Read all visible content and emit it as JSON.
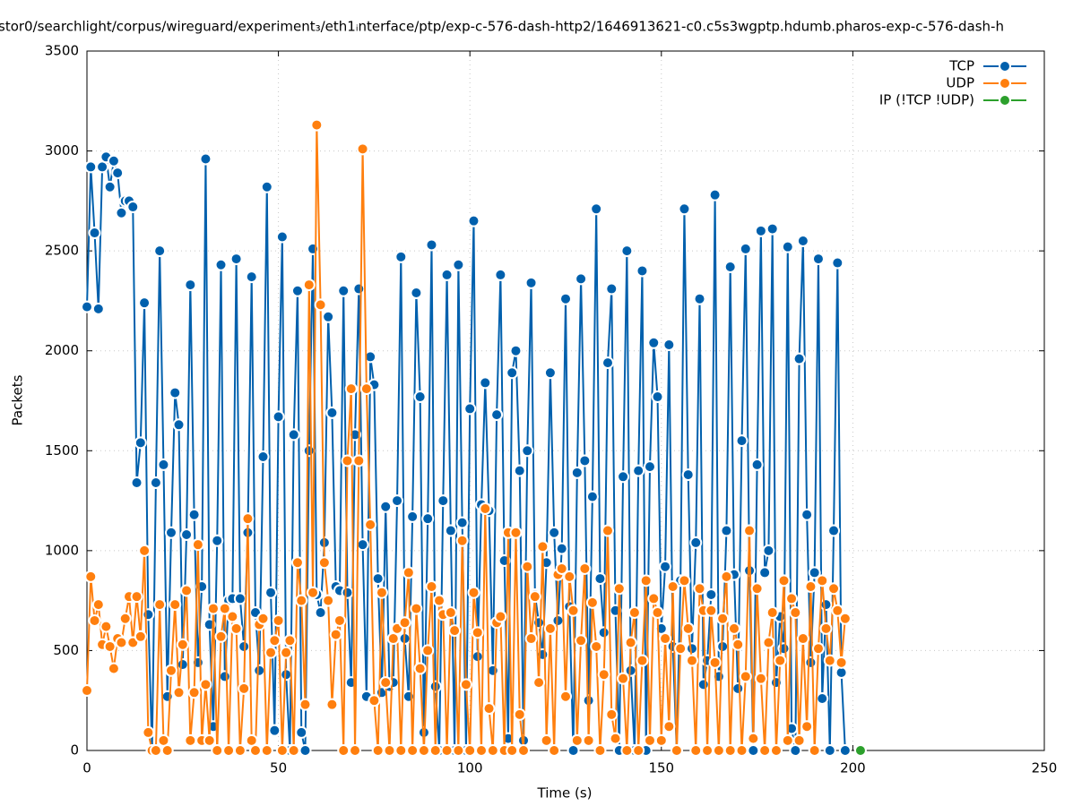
{
  "chart_data": {
    "type": "line",
    "title": "stor0/searchlight/corpus/wireguard/experiment₃/eth1ᵢnterface/ptp/exp-c-576-dash-http2/1646913621-c0.c5s3wgptp.hdumb.pharos-exp-c-576-dash-h",
    "x_label": "Time (s)",
    "y_label": "Packets",
    "xlim": [
      0,
      250
    ],
    "ylim": [
      0,
      3500
    ],
    "xticks": [
      0,
      50,
      100,
      150,
      200,
      250
    ],
    "yticks": [
      0,
      500,
      1000,
      1500,
      2000,
      2500,
      3000,
      3500
    ],
    "grid": true,
    "legend": "top-right",
    "x": [
      0,
      1,
      2,
      3,
      4,
      5,
      6,
      7,
      8,
      9,
      10,
      11,
      12,
      13,
      14,
      15,
      16,
      17,
      18,
      19,
      20,
      21,
      22,
      23,
      24,
      25,
      26,
      27,
      28,
      29,
      30,
      31,
      32,
      33,
      34,
      35,
      36,
      37,
      38,
      39,
      40,
      41,
      42,
      43,
      44,
      45,
      46,
      47,
      48,
      49,
      50,
      51,
      52,
      53,
      54,
      55,
      56,
      57,
      58,
      59,
      60,
      61,
      62,
      63,
      64,
      65,
      66,
      67,
      68,
      69,
      70,
      71,
      72,
      73,
      74,
      75,
      76,
      77,
      78,
      79,
      80,
      81,
      82,
      83,
      84,
      85,
      86,
      87,
      88,
      89,
      90,
      91,
      92,
      93,
      94,
      95,
      96,
      97,
      98,
      99,
      100,
      101,
      102,
      103,
      104,
      105,
      106,
      107,
      108,
      109,
      110,
      111,
      112,
      113,
      114,
      115,
      116,
      117,
      118,
      119,
      120,
      121,
      122,
      123,
      124,
      125,
      126,
      127,
      128,
      129,
      130,
      131,
      132,
      133,
      134,
      135,
      136,
      137,
      138,
      139,
      140,
      141,
      142,
      143,
      144,
      145,
      146,
      147,
      148,
      149,
      150,
      151,
      152,
      153,
      154,
      155,
      156,
      157,
      158,
      159,
      160,
      161,
      162,
      163,
      164,
      165,
      166,
      167,
      168,
      169,
      170,
      171,
      172,
      173,
      174,
      175,
      176,
      177,
      178,
      179,
      180,
      181,
      182,
      183,
      184,
      185,
      186,
      187,
      188,
      189,
      190,
      191,
      192,
      193,
      194,
      195,
      196,
      197,
      198
    ],
    "series": [
      {
        "name": "TCP",
        "color": "#0060ad",
        "values": [
          2220,
          2920,
          2590,
          2210,
          2920,
          2970,
          2820,
          2950,
          2890,
          2690,
          2750,
          2750,
          2720,
          1340,
          1540,
          2240,
          680,
          0,
          1340,
          2500,
          1430,
          270,
          1090,
          1790,
          1630,
          430,
          1080,
          2330,
          1180,
          440,
          820,
          2960,
          630,
          120,
          1050,
          2430,
          370,
          750,
          760,
          2460,
          760,
          520,
          1090,
          2370,
          690,
          400,
          1470,
          2820,
          790,
          100,
          1670,
          2570,
          380,
          0,
          1580,
          2300,
          90,
          0,
          1500,
          2510,
          780,
          690,
          1040,
          2170,
          1690,
          820,
          800,
          2300,
          790,
          340,
          1580,
          2310,
          1030,
          270,
          1970,
          1830,
          860,
          290,
          1220,
          320,
          340,
          1250,
          2470,
          560,
          270,
          1170,
          2290,
          1770,
          90,
          1160,
          2530,
          320,
          0,
          1250,
          2380,
          1100,
          0,
          2430,
          1140,
          0,
          1710,
          2650,
          470,
          1230,
          1840,
          1200,
          400,
          1680,
          2380,
          950,
          60,
          1890,
          2000,
          1400,
          50,
          1500,
          2340,
          780,
          640,
          480,
          940,
          1890,
          1090,
          650,
          1010,
          2260,
          720,
          0,
          1390,
          2360,
          1450,
          250,
          1270,
          2710,
          860,
          590,
          1940,
          2310,
          700,
          0,
          1370,
          2500,
          400,
          0,
          1400,
          2400,
          0,
          1420,
          2040,
          1770,
          610,
          920,
          2030,
          520,
          0,
          850,
          2710,
          1380,
          510,
          1040,
          2260,
          330,
          450,
          780,
          2780,
          370,
          520,
          1100,
          2420,
          880,
          310,
          1550,
          2510,
          900,
          0,
          1430,
          2600,
          890,
          1000,
          2610,
          340,
          670,
          510,
          2520,
          110,
          0,
          1960,
          2550,
          1180,
          440,
          890,
          2460,
          260,
          730,
          0,
          1100,
          2440,
          390,
          0
        ]
      },
      {
        "name": "UDP",
        "color": "#ff7f0e",
        "values": [
          300,
          870,
          650,
          730,
          530,
          620,
          520,
          410,
          560,
          540,
          660,
          770,
          540,
          770,
          570,
          1000,
          90,
          0,
          0,
          730,
          50,
          0,
          400,
          730,
          290,
          530,
          800,
          50,
          290,
          1030,
          50,
          330,
          50,
          710,
          0,
          570,
          710,
          0,
          670,
          610,
          0,
          310,
          1160,
          50,
          0,
          630,
          660,
          0,
          490,
          550,
          650,
          0,
          490,
          550,
          0,
          940,
          750,
          230,
          2330,
          790,
          3130,
          2230,
          940,
          750,
          230,
          580,
          650,
          0,
          1450,
          1810,
          0,
          1450,
          3010,
          1810,
          1130,
          250,
          0,
          790,
          340,
          0,
          560,
          610,
          0,
          640,
          890,
          0,
          710,
          410,
          0,
          500,
          820,
          0,
          750,
          680,
          0,
          690,
          600,
          0,
          1050,
          330,
          0,
          790,
          590,
          0,
          1210,
          210,
          0,
          640,
          670,
          0,
          1090,
          0,
          1090,
          180,
          0,
          920,
          560,
          770,
          340,
          1020,
          50,
          610,
          0,
          880,
          910,
          270,
          870,
          700,
          50,
          550,
          910,
          50,
          740,
          520,
          0,
          380,
          1100,
          180,
          60,
          810,
          360,
          0,
          540,
          690,
          0,
          450,
          850,
          50,
          760,
          690,
          50,
          560,
          120,
          820,
          0,
          510,
          850,
          610,
          450,
          0,
          810,
          700,
          0,
          700,
          440,
          0,
          660,
          870,
          0,
          610,
          530,
          0,
          370,
          1100,
          60,
          810,
          360,
          0,
          540,
          690,
          0,
          450,
          850,
          50,
          760,
          690,
          50,
          560,
          120,
          820,
          0,
          510,
          850,
          610,
          450,
          810,
          700,
          440,
          660
        ]
      },
      {
        "name": "IP (!TCP  !UDP)",
        "color": "#2ca02c",
        "x": [
          202
        ],
        "values": [
          0
        ]
      }
    ]
  }
}
